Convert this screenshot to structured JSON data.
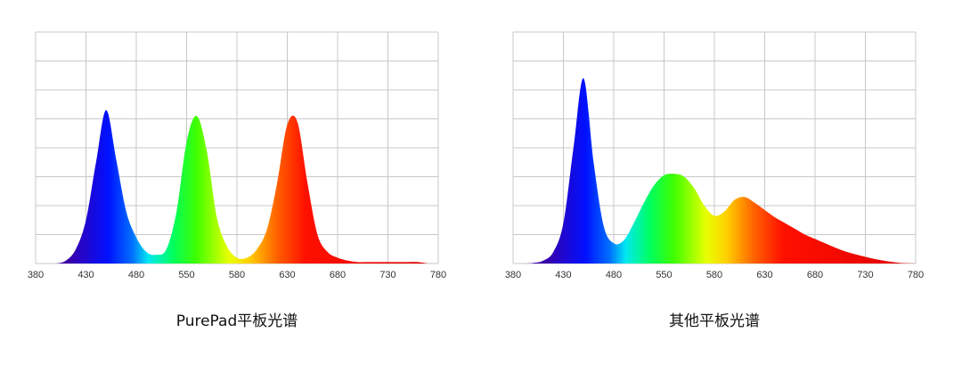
{
  "chart_data": [
    {
      "type": "area",
      "title": "PurePad平板光谱",
      "categories": [
        "380",
        "430",
        "480",
        "550",
        "580",
        "630",
        "680",
        "730",
        "780"
      ],
      "x": [
        380,
        390,
        400,
        410,
        420,
        430,
        440,
        450,
        460,
        470,
        480,
        490,
        500,
        510,
        520,
        530,
        540,
        550,
        560,
        570,
        580,
        590,
        600,
        610,
        620,
        630,
        640,
        650,
        660,
        670,
        680,
        690,
        700,
        710,
        720,
        730,
        740,
        750,
        760,
        770,
        780
      ],
      "values": [
        0,
        0,
        0,
        0.1,
        0.5,
        1.5,
        3.5,
        5.3,
        3.6,
        1.8,
        0.9,
        0.4,
        0.3,
        0.5,
        1.8,
        4.2,
        5.1,
        3.9,
        1.6,
        0.6,
        0.2,
        0.2,
        0.5,
        1.2,
        2.8,
        4.8,
        4.9,
        2.8,
        1.0,
        0.4,
        0.2,
        0.1,
        0.05,
        0.05,
        0.05,
        0.05,
        0.05,
        0.05,
        0.05,
        0,
        0
      ],
      "xlim": [
        380,
        780
      ],
      "ylim": [
        0,
        8
      ],
      "ygrid": [
        0,
        1,
        2,
        3,
        4,
        5,
        6,
        7,
        8
      ]
    },
    {
      "type": "area",
      "title": "其他平板光谱",
      "categories": [
        "380",
        "430",
        "480",
        "550",
        "580",
        "630",
        "680",
        "730",
        "780"
      ],
      "x": [
        380,
        390,
        400,
        410,
        420,
        430,
        440,
        450,
        460,
        470,
        480,
        490,
        500,
        510,
        520,
        530,
        540,
        550,
        560,
        570,
        580,
        590,
        600,
        610,
        620,
        630,
        640,
        650,
        660,
        670,
        680,
        690,
        700,
        710,
        720,
        730,
        740,
        750,
        760,
        770,
        780
      ],
      "values": [
        0,
        0,
        0.02,
        0.1,
        0.4,
        1.4,
        4.0,
        6.4,
        3.5,
        1.3,
        0.7,
        0.8,
        1.4,
        2.1,
        2.7,
        3.05,
        3.1,
        3.0,
        2.6,
        2.0,
        1.65,
        1.8,
        2.2,
        2.3,
        2.1,
        1.85,
        1.6,
        1.4,
        1.2,
        1.0,
        0.85,
        0.7,
        0.55,
        0.42,
        0.32,
        0.23,
        0.15,
        0.09,
        0.04,
        0.01,
        0
      ],
      "xlim": [
        380,
        780
      ],
      "ylim": [
        0,
        8
      ],
      "ygrid": [
        0,
        1,
        2,
        3,
        4,
        5,
        6,
        7,
        8
      ]
    }
  ]
}
